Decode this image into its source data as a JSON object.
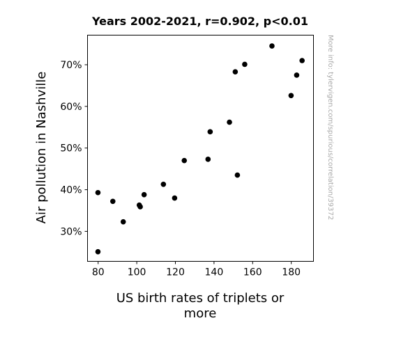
{
  "chart_data": {
    "type": "scatter",
    "title": "Years 2002-2021, r=0.902, p<0.01",
    "xlabel_lines": [
      "US birth rates of triplets or",
      "more"
    ],
    "ylabel": "Air pollution in Nashville",
    "xlim": [
      74.5,
      191.5
    ],
    "ylim": [
      22.8,
      77.1
    ],
    "xticks": [
      80,
      100,
      120,
      140,
      160,
      180
    ],
    "xtick_labels": [
      "80",
      "100",
      "120",
      "140",
      "160",
      "180"
    ],
    "yticks": [
      30,
      40,
      50,
      60,
      70
    ],
    "ytick_labels": [
      "30%",
      "40%",
      "50%",
      "60%",
      "70%"
    ],
    "grid": false,
    "legend": "none",
    "point_color": "#000000",
    "points": [
      {
        "x": 79.9,
        "y": 39.3
      },
      {
        "x": 79.9,
        "y": 25.1
      },
      {
        "x": 87.6,
        "y": 37.2
      },
      {
        "x": 93.0,
        "y": 32.3
      },
      {
        "x": 101.3,
        "y": 36.3
      },
      {
        "x": 101.8,
        "y": 35.9
      },
      {
        "x": 103.8,
        "y": 38.8
      },
      {
        "x": 113.8,
        "y": 41.3
      },
      {
        "x": 119.6,
        "y": 38.0
      },
      {
        "x": 124.6,
        "y": 47.0
      },
      {
        "x": 136.9,
        "y": 47.3
      },
      {
        "x": 138.0,
        "y": 53.9
      },
      {
        "x": 148.0,
        "y": 56.2
      },
      {
        "x": 151.0,
        "y": 68.3
      },
      {
        "x": 152.1,
        "y": 43.5
      },
      {
        "x": 155.9,
        "y": 70.1
      },
      {
        "x": 170.0,
        "y": 74.5
      },
      {
        "x": 179.9,
        "y": 62.6
      },
      {
        "x": 182.8,
        "y": 67.5
      },
      {
        "x": 185.6,
        "y": 71.0
      }
    ]
  },
  "watermark": "More info: tylervigen.com/spurious/correlation/39372"
}
